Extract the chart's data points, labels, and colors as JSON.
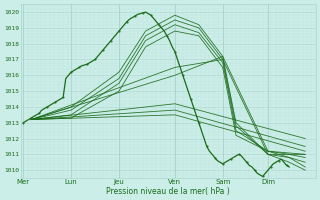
{
  "xlabel": "Pression niveau de la mer( hPa )",
  "ylim": [
    1009.5,
    1020.5
  ],
  "yticks": [
    1010,
    1011,
    1012,
    1013,
    1014,
    1015,
    1016,
    1017,
    1018,
    1019,
    1020
  ],
  "day_labels": [
    "Mer",
    "Lun",
    "Jeu",
    "Ven",
    "Sam",
    "Dim"
  ],
  "day_x": [
    0.0,
    0.9,
    1.8,
    2.85,
    3.75,
    4.6
  ],
  "xlim": [
    -0.05,
    5.5
  ],
  "bg_color": "#cceee8",
  "grid_color_major": "#aad4cc",
  "grid_color_minor": "#bbddd8",
  "line_color": "#1a6b1a",
  "tick_label_color": "#1a6b1a",
  "lines": [
    [
      0.15,
      1013.2,
      0.9,
      1014.0,
      1.8,
      1016.2,
      2.3,
      1018.8,
      2.85,
      1019.8,
      3.3,
      1019.2,
      3.75,
      1017.2,
      4.0,
      1013.0,
      4.6,
      1011.0,
      5.0,
      1010.8,
      5.3,
      1010.2
    ],
    [
      0.15,
      1013.2,
      0.9,
      1013.8,
      1.8,
      1015.8,
      2.3,
      1018.5,
      2.85,
      1019.5,
      3.3,
      1019.0,
      3.75,
      1017.0,
      4.0,
      1012.8,
      4.6,
      1011.0,
      5.0,
      1010.5,
      5.3,
      1010.0
    ],
    [
      0.15,
      1013.2,
      0.9,
      1013.5,
      1.8,
      1015.5,
      2.3,
      1018.2,
      2.85,
      1019.2,
      3.3,
      1018.7,
      3.75,
      1016.8,
      4.0,
      1012.5,
      4.6,
      1011.2,
      5.0,
      1010.8,
      5.3,
      1010.5
    ],
    [
      0.15,
      1013.2,
      0.9,
      1013.3,
      1.8,
      1015.0,
      2.3,
      1017.8,
      2.85,
      1018.8,
      3.3,
      1018.5,
      3.75,
      1016.5,
      4.0,
      1012.2,
      4.6,
      1011.2,
      5.0,
      1011.0,
      5.3,
      1010.8
    ],
    [
      0.15,
      1013.2,
      2.85,
      1013.5,
      5.3,
      1011.2
    ],
    [
      0.15,
      1013.2,
      2.85,
      1013.8,
      5.3,
      1011.5
    ],
    [
      0.15,
      1013.2,
      2.85,
      1014.2,
      5.3,
      1012.0
    ],
    [
      0.15,
      1013.2,
      2.85,
      1016.0,
      3.75,
      1017.2,
      4.6,
      1011.2,
      5.3,
      1011.0
    ],
    [
      0.15,
      1013.2,
      2.85,
      1016.5,
      3.75,
      1017.0,
      4.6,
      1011.0,
      5.3,
      1011.0
    ]
  ],
  "observed_line": [
    0.0,
    1013.0,
    0.05,
    1013.1,
    0.1,
    1013.2,
    0.15,
    1013.3,
    0.2,
    1013.4,
    0.25,
    1013.5,
    0.3,
    1013.6,
    0.35,
    1013.8,
    0.4,
    1013.9,
    0.45,
    1014.0,
    0.5,
    1014.1,
    0.55,
    1014.2,
    0.6,
    1014.3,
    0.65,
    1014.4,
    0.7,
    1014.5,
    0.75,
    1014.6,
    0.8,
    1015.8,
    0.85,
    1016.0,
    0.9,
    1016.2,
    0.95,
    1016.3,
    1.0,
    1016.4,
    1.05,
    1016.5,
    1.1,
    1016.6,
    1.15,
    1016.65,
    1.2,
    1016.7,
    1.25,
    1016.8,
    1.3,
    1016.9,
    1.35,
    1017.0,
    1.4,
    1017.2,
    1.45,
    1017.4,
    1.5,
    1017.6,
    1.55,
    1017.8,
    1.6,
    1018.0,
    1.65,
    1018.2,
    1.7,
    1018.4,
    1.75,
    1018.6,
    1.8,
    1018.8,
    1.85,
    1019.0,
    1.9,
    1019.2,
    1.95,
    1019.4,
    2.0,
    1019.55,
    2.05,
    1019.65,
    2.1,
    1019.75,
    2.15,
    1019.85,
    2.2,
    1019.9,
    2.25,
    1019.95,
    2.3,
    1020.0,
    2.35,
    1019.9,
    2.4,
    1019.8,
    2.45,
    1019.6,
    2.5,
    1019.4,
    2.55,
    1019.2,
    2.6,
    1019.0,
    2.65,
    1018.8,
    2.7,
    1018.5,
    2.75,
    1018.2,
    2.8,
    1017.8,
    2.85,
    1017.5,
    2.9,
    1017.0,
    2.95,
    1016.5,
    3.0,
    1016.0,
    3.05,
    1015.5,
    3.1,
    1015.0,
    3.15,
    1014.5,
    3.2,
    1014.0,
    3.25,
    1013.5,
    3.3,
    1013.0,
    3.35,
    1012.5,
    3.4,
    1012.0,
    3.45,
    1011.5,
    3.5,
    1011.2,
    3.55,
    1011.0,
    3.6,
    1010.8,
    3.65,
    1010.6,
    3.7,
    1010.5,
    3.75,
    1010.4,
    3.8,
    1010.5,
    3.85,
    1010.6,
    3.9,
    1010.7,
    3.95,
    1010.8,
    4.0,
    1010.9,
    4.05,
    1011.0,
    4.1,
    1010.9,
    4.15,
    1010.7,
    4.2,
    1010.5,
    4.25,
    1010.3,
    4.3,
    1010.2,
    4.35,
    1010.0,
    4.4,
    1009.8,
    4.45,
    1009.7,
    4.5,
    1009.6,
    4.55,
    1009.8,
    4.6,
    1010.0,
    4.65,
    1010.2,
    4.7,
    1010.4,
    4.75,
    1010.5,
    4.8,
    1010.6,
    4.85,
    1010.7,
    4.9,
    1010.5,
    4.95,
    1010.3,
    5.0,
    1010.2
  ]
}
